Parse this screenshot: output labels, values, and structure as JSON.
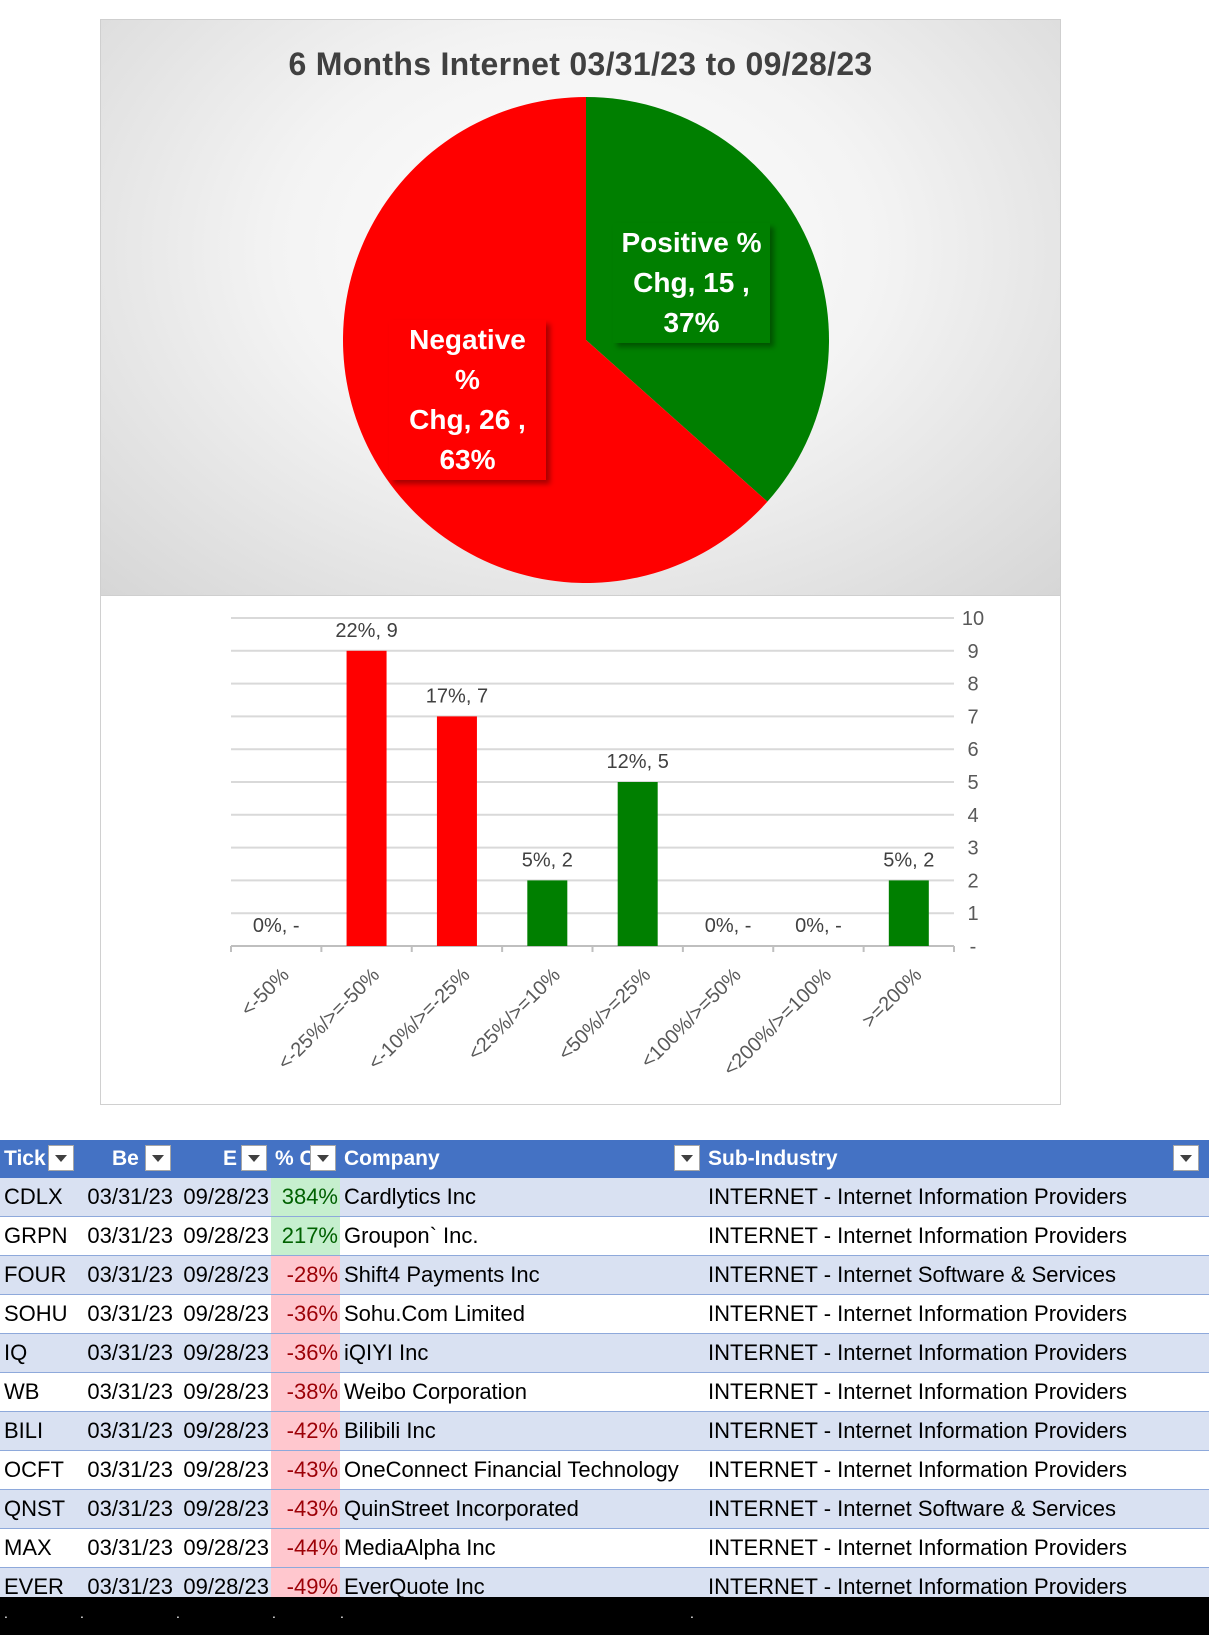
{
  "chart_data": [
    {
      "type": "pie",
      "title": "6 Months Internet 03/31/23 to 09/28/23",
      "slices": [
        {
          "label": "Positive % Chg",
          "value": 15,
          "percent": "37%",
          "color": "#007f00"
        },
        {
          "label": "Negative % Chg",
          "value": 26,
          "percent": "63%",
          "color": "#ff0000"
        }
      ]
    },
    {
      "type": "bar",
      "categories": [
        "<-50%",
        "<-25%/>=-50%",
        "<-10%/>=-25%",
        "<25%/>=10%",
        "<50%/>=25%",
        "<100%/>=50%",
        "<200%/>=100%",
        ">=200%"
      ],
      "values": [
        0,
        9,
        7,
        2,
        5,
        0,
        0,
        2
      ],
      "data_labels": [
        "0%,  -",
        "22%,  9",
        "17%,  7",
        "5%,  2",
        "12%,  5",
        "0%,  -",
        "0%,  -",
        "5%,  2"
      ],
      "colors": [
        "#ff0000",
        "#ff0000",
        "#ff0000",
        "#007f00",
        "#007f00",
        "#007f00",
        "#007f00",
        "#007f00"
      ],
      "ylim": [
        0,
        10
      ],
      "y_ticks": [
        "-",
        "1",
        "2",
        "3",
        "4",
        "5",
        "6",
        "7",
        "8",
        "9",
        "10"
      ],
      "y_axis_side": "right",
      "grid": true
    }
  ],
  "table": {
    "headers": [
      "Tick",
      "Be",
      "E",
      "% C",
      "Company",
      "Sub-Industry"
    ],
    "rows": [
      {
        "ticker": "CDLX",
        "begin": "03/31/23",
        "end": "09/28/23",
        "pct": "384%",
        "company": "Cardlytics Inc",
        "sub": "INTERNET - Internet Information Providers"
      },
      {
        "ticker": "GRPN",
        "begin": "03/31/23",
        "end": "09/28/23",
        "pct": "217%",
        "company": "Groupon` Inc.",
        "sub": "INTERNET - Internet Information Providers"
      },
      {
        "ticker": "FOUR",
        "begin": "03/31/23",
        "end": "09/28/23",
        "pct": "-28%",
        "company": "Shift4 Payments Inc",
        "sub": "INTERNET - Internet Software & Services"
      },
      {
        "ticker": "SOHU",
        "begin": "03/31/23",
        "end": "09/28/23",
        "pct": "-36%",
        "company": "Sohu.Com Limited",
        "sub": "INTERNET - Internet Information Providers"
      },
      {
        "ticker": "IQ",
        "begin": "03/31/23",
        "end": "09/28/23",
        "pct": "-36%",
        "company": "iQIYI Inc",
        "sub": "INTERNET - Internet Information Providers"
      },
      {
        "ticker": "WB",
        "begin": "03/31/23",
        "end": "09/28/23",
        "pct": "-38%",
        "company": "Weibo Corporation",
        "sub": "INTERNET - Internet Information Providers"
      },
      {
        "ticker": "BILI",
        "begin": "03/31/23",
        "end": "09/28/23",
        "pct": "-42%",
        "company": "Bilibili Inc",
        "sub": "INTERNET - Internet Information Providers"
      },
      {
        "ticker": "OCFT",
        "begin": "03/31/23",
        "end": "09/28/23",
        "pct": "-43%",
        "company": "OneConnect Financial Technology",
        "sub": "INTERNET - Internet Information Providers"
      },
      {
        "ticker": "QNST",
        "begin": "03/31/23",
        "end": "09/28/23",
        "pct": "-43%",
        "company": "QuinStreet Incorporated",
        "sub": "INTERNET - Internet Software & Services"
      },
      {
        "ticker": "MAX",
        "begin": "03/31/23",
        "end": "09/28/23",
        "pct": "-44%",
        "company": "MediaAlpha Inc",
        "sub": "INTERNET - Internet Information Providers"
      },
      {
        "ticker": "EVER",
        "begin": "03/31/23",
        "end": "09/28/23",
        "pct": "-49%",
        "company": "EverQuote Inc",
        "sub": "INTERNET - Internet Information Providers"
      }
    ]
  },
  "footer": {
    "dots": [
      ".",
      ".",
      ".",
      ".",
      ".",
      "."
    ]
  }
}
